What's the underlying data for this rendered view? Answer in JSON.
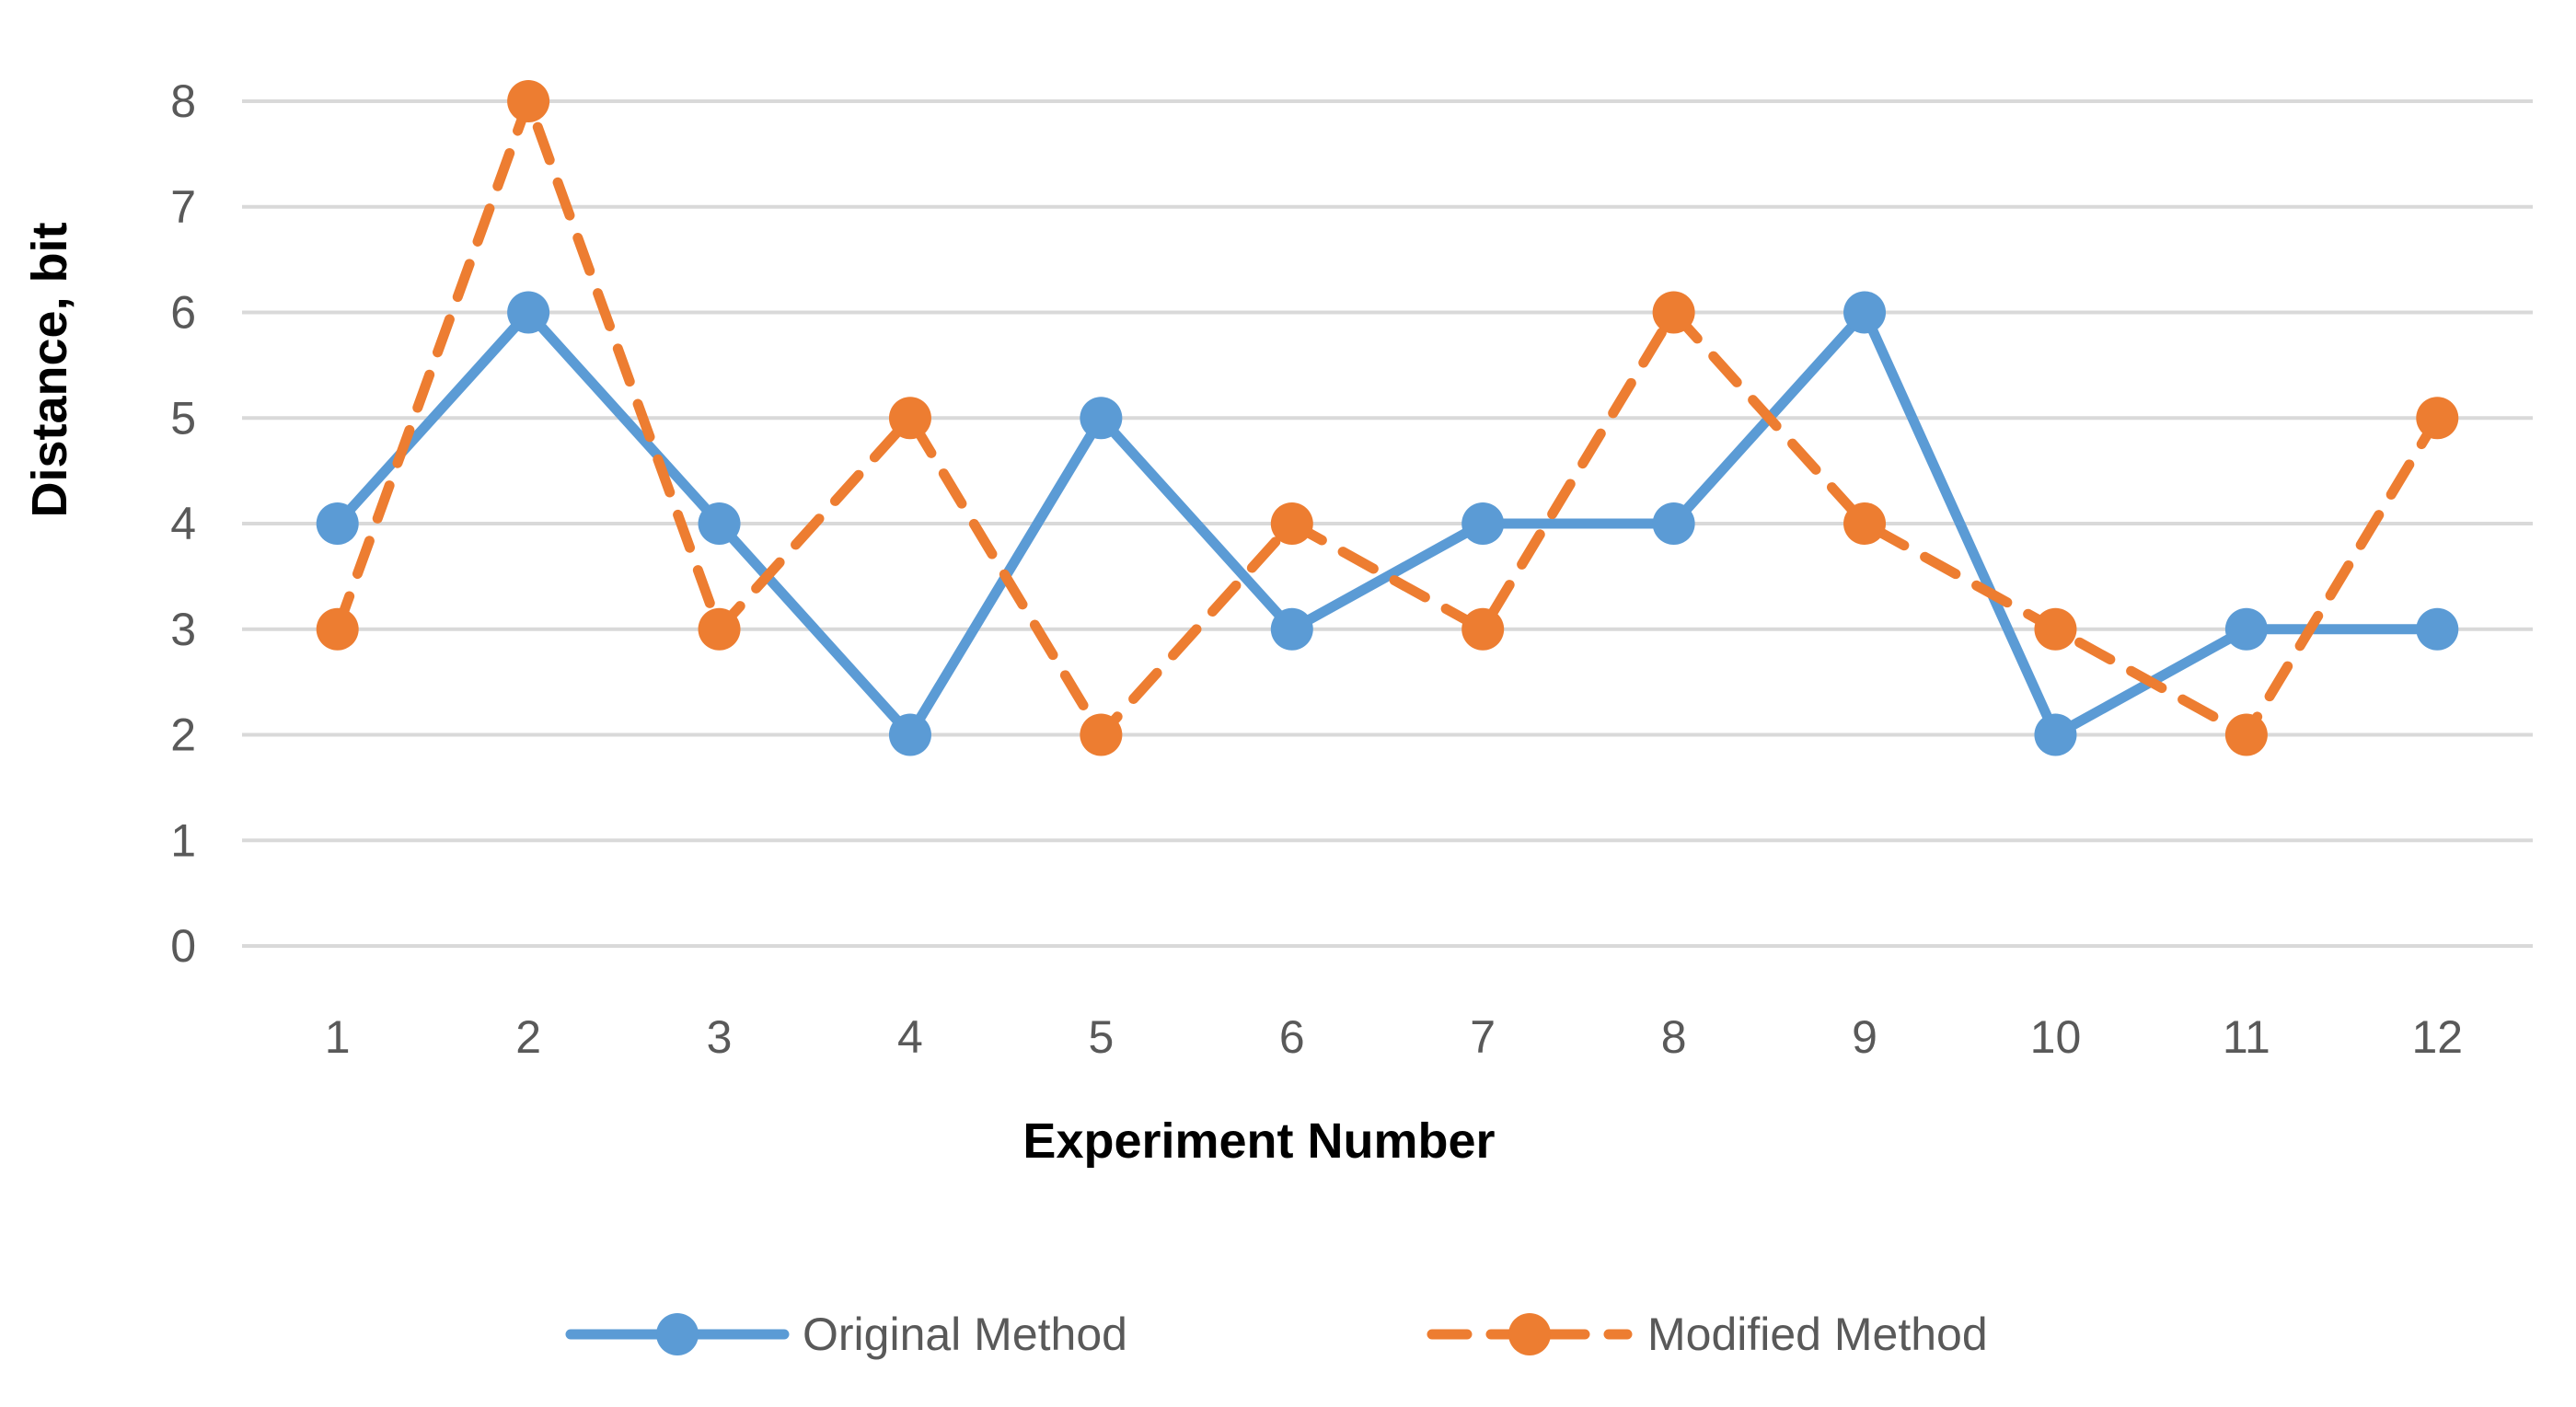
{
  "chart_data": {
    "type": "line",
    "title": "",
    "categories": [
      "1",
      "2",
      "3",
      "4",
      "5",
      "6",
      "7",
      "8",
      "9",
      "10",
      "11",
      "12"
    ],
    "series": [
      {
        "name": "Original Method",
        "values": [
          4,
          6,
          4,
          2,
          5,
          3,
          4,
          4,
          6,
          2,
          3,
          3
        ],
        "color": "#5B9BD5",
        "line_style": "solid",
        "marker": "circle"
      },
      {
        "name": "Modified Method",
        "values": [
          3,
          8,
          3,
          5,
          2,
          4,
          3,
          6,
          4,
          3,
          2,
          5
        ],
        "color": "#ED7D31",
        "line_style": "dashed",
        "marker": "circle"
      }
    ],
    "xlabel": "Experiment Number",
    "ylabel": "Distance, bit",
    "ylim": [
      0,
      8
    ],
    "ytick_step": 1,
    "yticks": [
      "0",
      "1",
      "2",
      "3",
      "4",
      "5",
      "6",
      "7",
      "8"
    ],
    "grid": true,
    "gridline_color": "#D9D9D9",
    "tick_label_color": "#595959",
    "axis_title_color": "#000000",
    "legend_position": "bottom",
    "background_color": "#FFFFFF"
  }
}
